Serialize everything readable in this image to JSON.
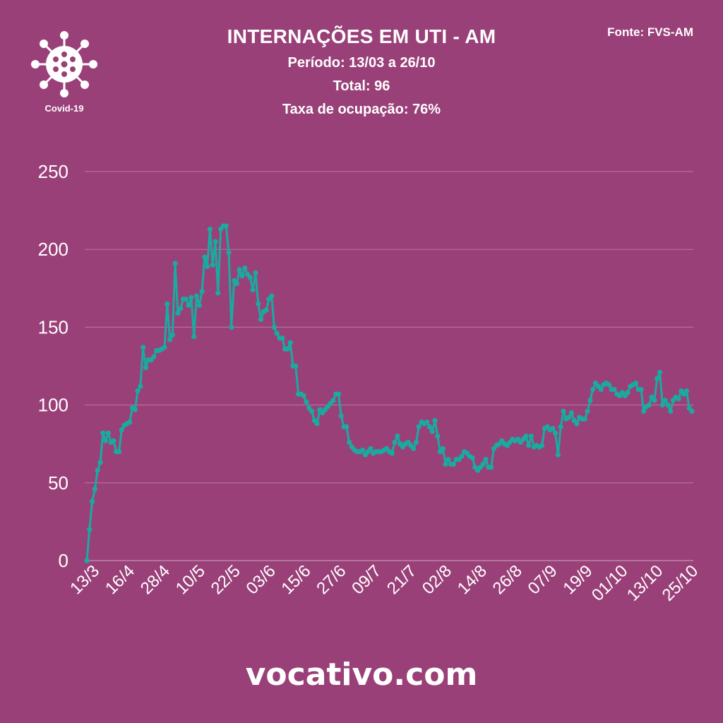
{
  "header": {
    "title": "INTERNAÇÕES EM UTI - AM",
    "period": "Período: 13/03 a 26/10",
    "total": "Total: 96",
    "occupancy": "Taxa de ocupação: 76%",
    "source": "Fonte: FVS-AM"
  },
  "logo": {
    "caption": "Covid-19",
    "icon": "virus-icon"
  },
  "footer": {
    "site": "vocativo.com"
  },
  "colors": {
    "background": "#9a4079",
    "line": "#19aba0",
    "text": "#ffffff"
  },
  "chart_data": {
    "type": "line",
    "title": "INTERNAÇÕES EM UTI - AM",
    "xlabel": "",
    "ylabel": "",
    "ylim": [
      0,
      250
    ],
    "yticks": [
      0,
      50,
      100,
      150,
      200,
      250
    ],
    "grid": true,
    "x_tick_labels": [
      "13/3",
      "16/4",
      "28/4",
      "10/5",
      "22/5",
      "03/6",
      "15/6",
      "27/6",
      "09/7",
      "21/7",
      "02/8",
      "14/8",
      "26/8",
      "07/9",
      "19/9",
      "01/10",
      "13/10",
      "25/10"
    ],
    "values": [
      0,
      20,
      38,
      46,
      58,
      63,
      82,
      77,
      82,
      76,
      77,
      70,
      70,
      84,
      87,
      88,
      89,
      98,
      97,
      109,
      112,
      137,
      124,
      129,
      129,
      131,
      135,
      135,
      136,
      137,
      165,
      142,
      145,
      191,
      159,
      162,
      168,
      168,
      164,
      169,
      144,
      170,
      164,
      173,
      195,
      189,
      213,
      190,
      205,
      172,
      213,
      215,
      215,
      198,
      150,
      180,
      178,
      187,
      183,
      188,
      184,
      182,
      174,
      185,
      165,
      155,
      160,
      161,
      168,
      170,
      150,
      146,
      143,
      143,
      136,
      136,
      140,
      125,
      125,
      107,
      107,
      106,
      102,
      98,
      96,
      90,
      88,
      97,
      95,
      97,
      99,
      101,
      103,
      107,
      107,
      93,
      86,
      86,
      76,
      73,
      71,
      70,
      70,
      71,
      68,
      70,
      72,
      69,
      70,
      70,
      70,
      71,
      72,
      70,
      69,
      76,
      80,
      75,
      73,
      75,
      76,
      74,
      72,
      76,
      86,
      89,
      88,
      89,
      86,
      83,
      90,
      80,
      70,
      72,
      62,
      65,
      62,
      62,
      65,
      65,
      67,
      70,
      69,
      67,
      66,
      60,
      58,
      60,
      62,
      65,
      60,
      60,
      72,
      74,
      75,
      77,
      75,
      74,
      76,
      78,
      77,
      78,
      76,
      78,
      80,
      74,
      80,
      73,
      74,
      73,
      74,
      85,
      86,
      84,
      85,
      82,
      68,
      86,
      96,
      91,
      92,
      95,
      90,
      88,
      92,
      91,
      91,
      96,
      103,
      110,
      114,
      112,
      110,
      113,
      114,
      113,
      110,
      110,
      107,
      106,
      108,
      106,
      108,
      112,
      113,
      114,
      110,
      110,
      96,
      99,
      100,
      105,
      103,
      117,
      121,
      100,
      103,
      100,
      96,
      103,
      105,
      104,
      109,
      107,
      109,
      98,
      96
    ]
  }
}
